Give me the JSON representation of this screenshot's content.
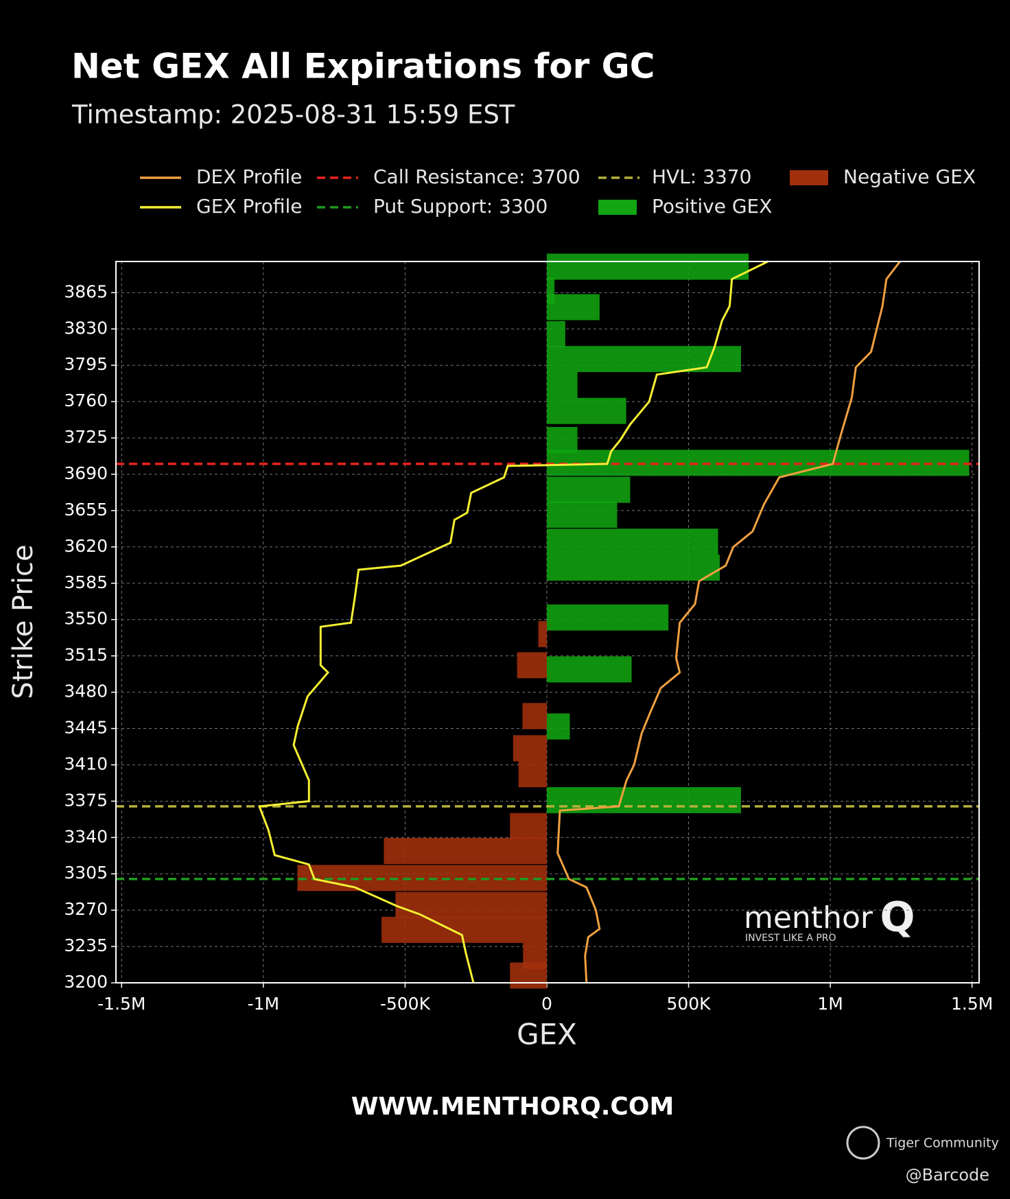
{
  "chart_data": {
    "type": "bar",
    "title": "Net GEX All Expirations for GC",
    "subtitle": "Timestamp: 2025-08-31 15:59 EST",
    "x_label": "GEX",
    "y_label": "Strike Price",
    "xlim": [
      -1520000,
      1525000
    ],
    "ylim": [
      3200,
      3895
    ],
    "xticks": [
      {
        "value": -1500000,
        "label": "-1.5M"
      },
      {
        "value": -1000000,
        "label": "-1M"
      },
      {
        "value": -500000,
        "label": "-500K"
      },
      0,
      {
        "value": 500000,
        "label": "500K"
      },
      {
        "value": 1000000,
        "label": "1M"
      },
      {
        "value": 1500000,
        "label": "1.5M"
      }
    ],
    "yticks": [
      3200,
      3235,
      3270,
      3305,
      3340,
      3375,
      3410,
      3445,
      3480,
      3515,
      3550,
      3585,
      3620,
      3655,
      3690,
      3725,
      3760,
      3795,
      3830,
      3865
    ],
    "grid": true,
    "series": [
      {
        "name": "DEX Profile",
        "type": "line",
        "color": "#f0a040",
        "strikes": [
          3200,
          3226,
          3244,
          3252,
          3270,
          3292,
          3300,
          3325,
          3366,
          3370,
          3395,
          3410,
          3440,
          3458,
          3484,
          3499,
          3513,
          3547,
          3565,
          3587,
          3602,
          3620,
          3635,
          3661,
          3687,
          3700,
          3727,
          3764,
          3793,
          3808,
          3852,
          3878,
          3895
        ],
        "values": [
          140000,
          135000,
          146000,
          186000,
          173000,
          140000,
          78000,
          38000,
          46000,
          254000,
          281000,
          308000,
          334000,
          361000,
          402000,
          469000,
          456000,
          469000,
          523000,
          537000,
          631000,
          658000,
          726000,
          766000,
          820000,
          1009000,
          1036000,
          1076000,
          1090000,
          1144000,
          1184000,
          1198000,
          1246000
        ]
      },
      {
        "name": "GEX Profile",
        "type": "line",
        "color": "#f5f032",
        "strikes": [
          3200,
          3229,
          3246,
          3266,
          3274,
          3292,
          3300,
          3314,
          3323,
          3347,
          3370,
          3375,
          3395,
          3429,
          3447,
          3476,
          3499,
          3506,
          3543,
          3547,
          3572,
          3598,
          3602,
          3624,
          3646,
          3653,
          3672,
          3687,
          3698,
          3700,
          3712,
          3723,
          3738,
          3760,
          3786,
          3793,
          3812,
          3838,
          3852,
          3878,
          3895
        ],
        "values": [
          -259000,
          -286000,
          -299000,
          -448000,
          -529000,
          -677000,
          -820000,
          -839000,
          -960000,
          -982000,
          -1014000,
          -839000,
          -839000,
          -893000,
          -879000,
          -844000,
          -772000,
          -798000,
          -798000,
          -691000,
          -677000,
          -664000,
          -515000,
          -340000,
          -326000,
          -281000,
          -267000,
          -151000,
          -138000,
          213000,
          227000,
          259000,
          294000,
          361000,
          388000,
          564000,
          591000,
          618000,
          645000,
          653000,
          780000
        ]
      },
      {
        "name": "Positive GEX",
        "type": "bar",
        "color": "#11a511",
        "strikes": [
          3890,
          3867,
          3851,
          3825,
          3801,
          3776,
          3751,
          3723,
          3701,
          3675,
          3651,
          3625,
          3600,
          3552,
          3502,
          3447,
          3376
        ],
        "values": [
          712000,
          27000,
          186000,
          65000,
          685000,
          108000,
          280000,
          108000,
          1490000,
          294000,
          248000,
          604000,
          610000,
          429000,
          299000,
          81000,
          685000
        ]
      },
      {
        "name": "Negative GEX",
        "type": "bar",
        "color": "#a3300c",
        "strikes": [
          3536,
          3506,
          3457,
          3426,
          3401,
          3351,
          3327,
          3301,
          3275,
          3251,
          3226,
          3207
        ],
        "values": [
          -30000,
          -105000,
          -86000,
          -119000,
          -100000,
          -130000,
          -575000,
          -880000,
          -534000,
          -583000,
          -84000,
          -130000
        ]
      }
    ],
    "reference_lines": [
      {
        "label": "Call Resistance: 3700",
        "value": 3700,
        "color": "#e8231e"
      },
      {
        "label": "Put Support: 3300",
        "value": 3300,
        "color": "#1f9a1f"
      },
      {
        "label": "HVL: 3370",
        "value": 3370,
        "color": "#b3b03a"
      }
    ],
    "brand": "menthor",
    "brand_mark": "Q",
    "tagline": "INVEST LIKE A PRO",
    "website": "WWW.MENTHORQ.COM",
    "community": "Tiger Community",
    "handle": "@Barcode"
  }
}
